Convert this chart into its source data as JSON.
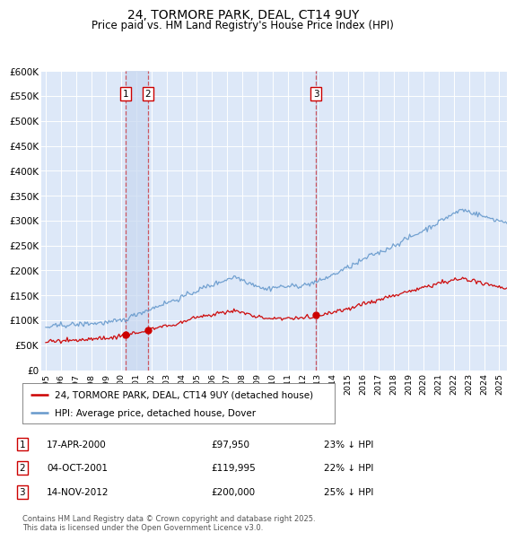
{
  "title": "24, TORMORE PARK, DEAL, CT14 9UY",
  "subtitle": "Price paid vs. HM Land Registry's House Price Index (HPI)",
  "ylabel_ticks": [
    "£0",
    "£50K",
    "£100K",
    "£150K",
    "£200K",
    "£250K",
    "£300K",
    "£350K",
    "£400K",
    "£450K",
    "£500K",
    "£550K",
    "£600K"
  ],
  "ylim": [
    0,
    600000
  ],
  "xlim_start": 1994.7,
  "xlim_end": 2025.5,
  "transactions": [
    {
      "label": "1",
      "date": "17-APR-2000",
      "price": 97950,
      "pct": "23%",
      "year": 2000.29
    },
    {
      "label": "2",
      "date": "04-OCT-2001",
      "price": 119995,
      "pct": "22%",
      "year": 2001.75
    },
    {
      "label": "3",
      "date": "14-NOV-2012",
      "price": 200000,
      "pct": "25%",
      "year": 2012.87
    }
  ],
  "legend_line1": "24, TORMORE PARK, DEAL, CT14 9UY (detached house)",
  "legend_line2": "HPI: Average price, detached house, Dover",
  "red_color": "#cc0000",
  "blue_color": "#6699cc",
  "footer": "Contains HM Land Registry data © Crown copyright and database right 2025.\nThis data is licensed under the Open Government Licence v3.0.",
  "background_color": "#ffffff",
  "plot_bg_color": "#dde8f8",
  "grid_color": "#ffffff",
  "vline_color": "#cc0000",
  "vspan_color": "#c8d8f0",
  "title_fontsize": 10,
  "subtitle_fontsize": 8.5
}
